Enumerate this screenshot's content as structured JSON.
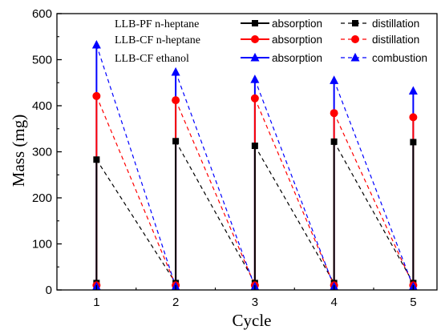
{
  "chart_data": {
    "type": "line",
    "xlabel": "Cycle",
    "ylabel": "Mass (mg)",
    "xlim": [
      0.5,
      5.3
    ],
    "ylim": [
      0,
      600
    ],
    "x_ticks": [
      1,
      2,
      3,
      4,
      5
    ],
    "y_ticks": [
      0,
      100,
      200,
      300,
      400,
      500,
      600
    ],
    "grid": false,
    "legend_placement": "top",
    "legend": [
      {
        "text": "LLB-PF  n-heptane",
        "color": "#000000",
        "marker": "square",
        "absorption_label": "absorption",
        "regeneration_label": "distillation"
      },
      {
        "text": "LLB-CF  n-heptane",
        "color": "#ff0000",
        "marker": "circle",
        "absorption_label": "absorption",
        "regeneration_label": "distillation"
      },
      {
        "text": "LLB-CF  ethanol",
        "color": "#0000ff",
        "marker": "triangle",
        "absorption_label": "absorption",
        "regeneration_label": "combustion"
      }
    ],
    "series": [
      {
        "name": "LLB-PF n-heptane",
        "color": "#000000",
        "marker": "square",
        "x": [
          1,
          2,
          3,
          4,
          5
        ],
        "start": [
          15,
          15,
          15,
          15,
          15
        ],
        "peak": [
          283,
          323,
          313,
          322,
          321
        ]
      },
      {
        "name": "LLB-CF n-heptane",
        "color": "#ff0000",
        "marker": "circle",
        "x": [
          1,
          2,
          3,
          4,
          5
        ],
        "start": [
          10,
          10,
          10,
          10,
          10
        ],
        "peak": [
          421,
          412,
          416,
          384,
          375
        ]
      },
      {
        "name": "LLB-CF ethanol",
        "color": "#0000ff",
        "marker": "triangle",
        "x": [
          1,
          2,
          3,
          4,
          5
        ],
        "start": [
          7,
          7,
          7,
          7,
          7
        ],
        "peak": [
          532,
          473,
          457,
          455,
          432
        ]
      }
    ]
  }
}
